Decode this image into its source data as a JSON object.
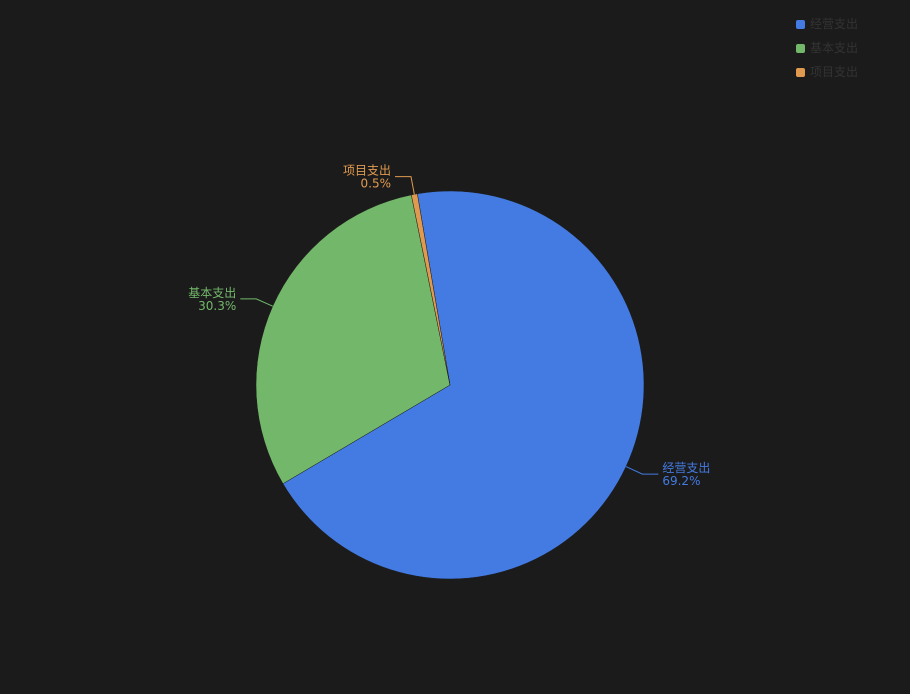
{
  "chart_data": {
    "type": "pie",
    "categories": [
      "经营支出",
      "基本支出",
      "项目支出"
    ],
    "values": [
      69.2,
      30.3,
      0.5
    ],
    "value_labels": [
      "69.2%",
      "30.3%",
      "0.5%"
    ],
    "colors": [
      "#447be3",
      "#73b86a",
      "#e09a50"
    ],
    "legend": "top-right"
  }
}
